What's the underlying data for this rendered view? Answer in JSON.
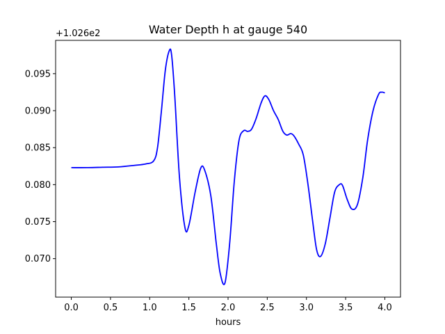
{
  "chart_data": {
    "type": "line",
    "title": "Water Depth h at gauge 540",
    "xlabel": "hours",
    "ylabel": "",
    "offset_text": "+1.026e2",
    "xlim": [
      -0.2,
      4.2
    ],
    "ylim": [
      0.0648,
      0.0995
    ],
    "xticks": [
      0.0,
      0.5,
      1.0,
      1.5,
      2.0,
      2.5,
      3.0,
      3.5,
      4.0
    ],
    "xtick_labels": [
      "0.0",
      "0.5",
      "1.0",
      "1.5",
      "2.0",
      "2.5",
      "3.0",
      "3.5",
      "4.0"
    ],
    "yticks": [
      0.07,
      0.075,
      0.08,
      0.085,
      0.09,
      0.095
    ],
    "ytick_labels": [
      "0.070",
      "0.075",
      "0.080",
      "0.085",
      "0.090",
      "0.095"
    ],
    "grid": false,
    "series": [
      {
        "name": "",
        "color": "#0000ff",
        "x": [
          0.0,
          0.2,
          0.4,
          0.6,
          0.8,
          0.95,
          1.05,
          1.1,
          1.15,
          1.2,
          1.25,
          1.28,
          1.32,
          1.38,
          1.45,
          1.5,
          1.58,
          1.65,
          1.7,
          1.78,
          1.85,
          1.9,
          1.96,
          2.02,
          2.08,
          2.14,
          2.2,
          2.25,
          2.3,
          2.36,
          2.42,
          2.47,
          2.52,
          2.58,
          2.64,
          2.7,
          2.75,
          2.8,
          2.84,
          2.9,
          2.96,
          3.02,
          3.08,
          3.13,
          3.18,
          3.24,
          3.3,
          3.36,
          3.42,
          3.46,
          3.52,
          3.58,
          3.65,
          3.72,
          3.78,
          3.85,
          3.92,
          3.96,
          4.0
        ],
        "values": [
          0.0823,
          0.0823,
          0.08235,
          0.0824,
          0.0826,
          0.0828,
          0.0832,
          0.085,
          0.09,
          0.0955,
          0.0981,
          0.0975,
          0.092,
          0.081,
          0.0742,
          0.0745,
          0.079,
          0.0822,
          0.082,
          0.0785,
          0.072,
          0.068,
          0.0667,
          0.072,
          0.0805,
          0.086,
          0.0873,
          0.0872,
          0.0875,
          0.089,
          0.091,
          0.092,
          0.0915,
          0.09,
          0.0888,
          0.0872,
          0.0867,
          0.0869,
          0.0866,
          0.0855,
          0.084,
          0.08,
          0.075,
          0.0712,
          0.0703,
          0.072,
          0.0755,
          0.079,
          0.08,
          0.0799,
          0.078,
          0.0767,
          0.0773,
          0.081,
          0.086,
          0.09,
          0.0922,
          0.0925,
          0.0924
        ]
      }
    ]
  }
}
